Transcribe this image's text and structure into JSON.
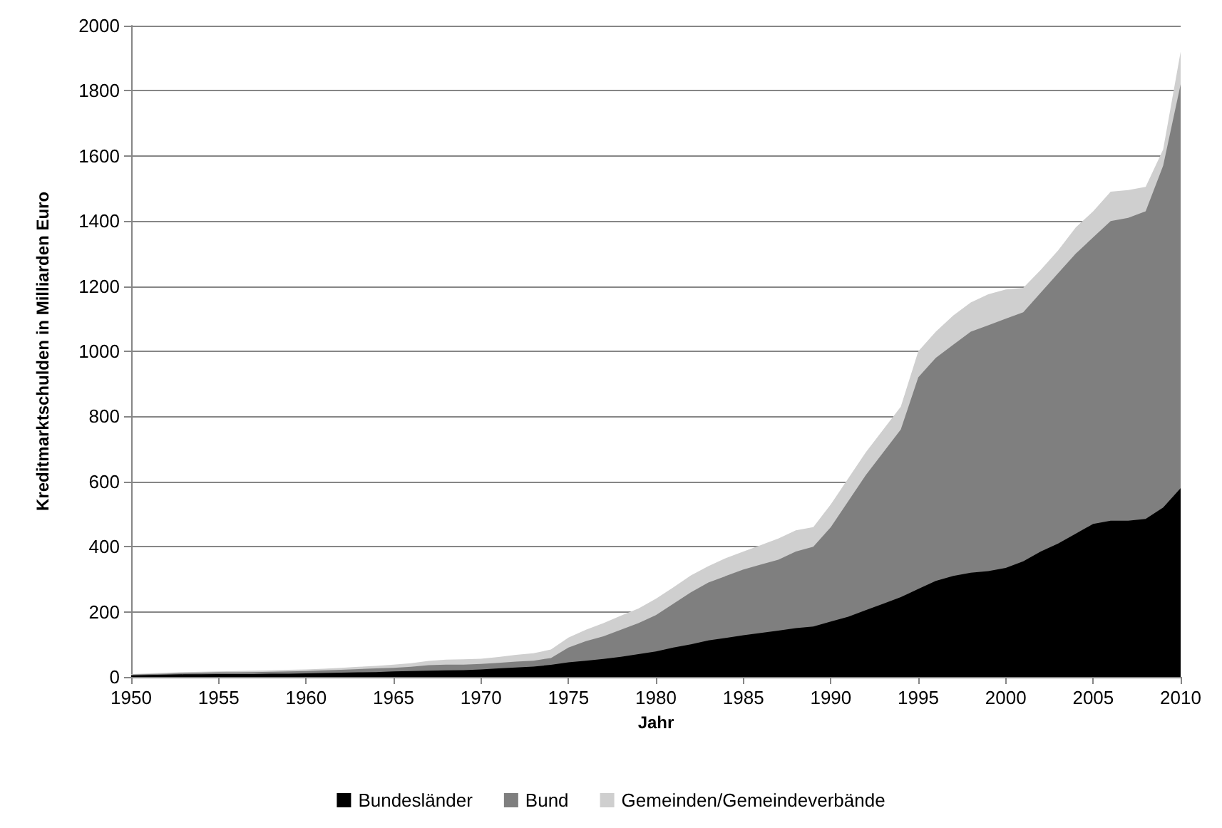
{
  "chart_data": {
    "type": "area",
    "stacked": true,
    "xlabel": "Jahr",
    "ylabel": "Kreditmarktschulden in Milliarden Euro",
    "x": [
      1950,
      1951,
      1952,
      1953,
      1954,
      1955,
      1956,
      1957,
      1958,
      1959,
      1960,
      1961,
      1962,
      1963,
      1964,
      1965,
      1966,
      1967,
      1968,
      1969,
      1970,
      1971,
      1972,
      1973,
      1974,
      1975,
      1976,
      1977,
      1978,
      1979,
      1980,
      1981,
      1982,
      1983,
      1984,
      1985,
      1986,
      1987,
      1988,
      1989,
      1990,
      1991,
      1992,
      1993,
      1994,
      1995,
      1996,
      1997,
      1998,
      1999,
      2000,
      2001,
      2002,
      2003,
      2004,
      2005,
      2006,
      2007,
      2008,
      2009,
      2010
    ],
    "series": [
      {
        "name": "Bundesländer",
        "color": "#000000",
        "values": [
          5,
          6,
          7,
          8,
          8,
          9,
          9,
          9,
          10,
          10,
          11,
          12,
          13,
          14,
          15,
          17,
          18,
          19,
          20,
          21,
          23,
          26,
          29,
          32,
          37,
          45,
          50,
          55,
          62,
          70,
          78,
          90,
          100,
          112,
          120,
          128,
          135,
          142,
          150,
          155,
          170,
          185,
          205,
          225,
          245,
          270,
          295,
          310,
          320,
          325,
          335,
          355,
          385,
          410,
          440,
          470,
          480,
          480,
          485,
          520,
          580
        ]
      },
      {
        "name": "Bund",
        "color": "#7f7f7f",
        "values": [
          2,
          3,
          3,
          4,
          5,
          5,
          5,
          6,
          6,
          7,
          7,
          8,
          9,
          10,
          11,
          11,
          13,
          17,
          18,
          17,
          17,
          17,
          18,
          18,
          21,
          45,
          60,
          70,
          83,
          95,
          112,
          135,
          160,
          178,
          190,
          202,
          210,
          218,
          235,
          245,
          290,
          355,
          415,
          465,
          515,
          650,
          685,
          710,
          740,
          755,
          765,
          765,
          795,
          830,
          860,
          880,
          920,
          930,
          945,
          1050,
          1240
        ]
      },
      {
        "name": "Gemeinden/Gemeindeverbände",
        "color": "#cfcfcf",
        "values": [
          2,
          2,
          3,
          3,
          3,
          3,
          4,
          4,
          4,
          5,
          5,
          5,
          6,
          7,
          8,
          10,
          11,
          13,
          15,
          16,
          16,
          18,
          21,
          23,
          26,
          31,
          35,
          40,
          43,
          45,
          50,
          50,
          52,
          50,
          55,
          55,
          60,
          65,
          65,
          60,
          70,
          70,
          70,
          70,
          70,
          80,
          80,
          90,
          90,
          95,
          90,
          75,
          70,
          70,
          80,
          80,
          90,
          85,
          75,
          50,
          100
        ]
      }
    ],
    "xlim": [
      1950,
      2010
    ],
    "xticks": [
      1950,
      1955,
      1960,
      1965,
      1970,
      1975,
      1980,
      1985,
      1990,
      1995,
      2000,
      2005,
      2010
    ],
    "ylim": [
      0,
      2000
    ],
    "yticks": [
      0,
      200,
      400,
      600,
      800,
      1000,
      1200,
      1400,
      1600,
      1800,
      2000
    ],
    "grid": "y",
    "legend": "bottom"
  }
}
